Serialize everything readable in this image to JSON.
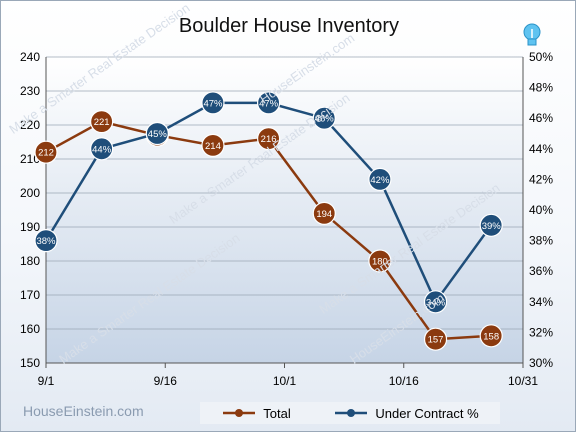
{
  "title": "Boulder House Inventory",
  "brand": "HouseEinstein.com",
  "watermark": "Make a Smarter Real Estate Decision",
  "watermark_site": "HouseEinstein.com",
  "colors": {
    "total": "#8b3a0f",
    "contract": "#1f4e7a",
    "grid": "#9aa6b4",
    "plot_bg_top": "#ffffff",
    "plot_bg_bottom": "#c6d4e6"
  },
  "chart_data": {
    "type": "line",
    "title": "Boulder House Inventory",
    "x_ticks": [
      "9/1",
      "9/16",
      "10/1",
      "10/16",
      "10/31"
    ],
    "x_dates": [
      "9/1",
      "9/8",
      "9/15",
      "9/22",
      "9/29",
      "10/6",
      "10/13",
      "10/20",
      "10/27"
    ],
    "ylim_left": [
      150,
      240
    ],
    "yticks_left": [
      150,
      160,
      170,
      180,
      190,
      200,
      210,
      220,
      230,
      240
    ],
    "ylim_right": [
      30,
      50
    ],
    "yticks_right": [
      "30%",
      "32%",
      "34%",
      "36%",
      "38%",
      "40%",
      "42%",
      "44%",
      "46%",
      "48%",
      "50%"
    ],
    "grid": true,
    "legend_position": "bottom",
    "series": [
      {
        "name": "Total",
        "axis": "left",
        "values": [
          212,
          221,
          217,
          214,
          216,
          194,
          180,
          157,
          158
        ],
        "labels": [
          "212",
          "221",
          "217",
          "214",
          "216",
          "194",
          "180",
          "157",
          "158"
        ]
      },
      {
        "name": "Under Contract %",
        "axis": "right",
        "values": [
          38,
          44,
          45,
          47,
          47,
          46,
          42,
          34,
          39
        ],
        "labels": [
          "38%",
          "44%",
          "45%",
          "47%",
          "47%",
          "46%",
          "42%",
          "34%",
          "39%"
        ]
      }
    ]
  }
}
